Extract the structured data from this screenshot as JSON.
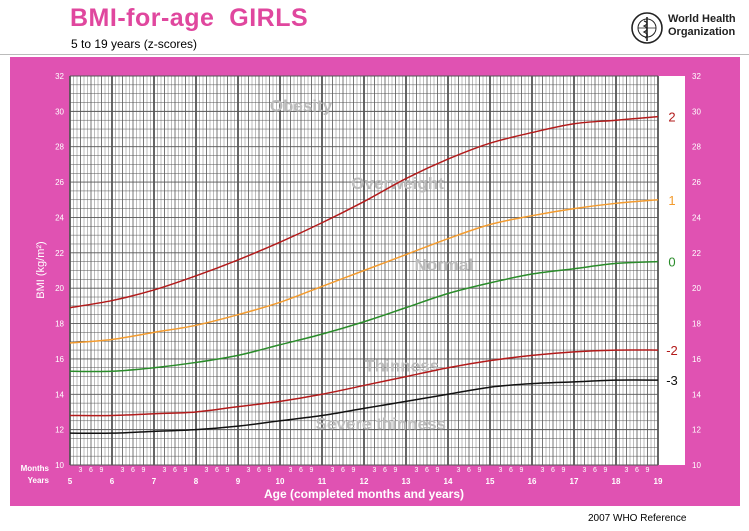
{
  "title": "BMI-for-age  GIRLS",
  "subtitle": "5 to 19 years (z-scores)",
  "logo": {
    "line1": "World Health",
    "line2": "Organization",
    "emblem": "who-emblem-icon"
  },
  "footer": "2007 WHO Reference",
  "colors": {
    "frame": "#e052b2",
    "title": "#e0479e",
    "grid": "#555555",
    "z2": "#b31b1b",
    "z1": "#f39b2e",
    "z0": "#2a8c2a",
    "zm2": "#b31b1b",
    "zm3": "#111111",
    "zone_label": "#bbbbbb"
  },
  "chart_data": {
    "type": "line",
    "xlabel": "Age (completed months and years)",
    "ylabel": "BMI (kg/m²)",
    "xlim": [
      5,
      19
    ],
    "ylim": [
      10,
      32
    ],
    "x_ticks": [
      5,
      6,
      7,
      8,
      9,
      10,
      11,
      12,
      13,
      14,
      15,
      16,
      17,
      18,
      19
    ],
    "x_tick_labels": [
      "5",
      "6",
      "7",
      "8",
      "9",
      "10",
      "11",
      "12",
      "13",
      "14",
      "15",
      "16",
      "17",
      "18",
      "19"
    ],
    "y_ticks": [
      10,
      12,
      14,
      16,
      18,
      20,
      22,
      24,
      26,
      28,
      30,
      32
    ],
    "y_tick_labels": [
      "10",
      "12",
      "14",
      "16",
      "18",
      "20",
      "22",
      "24",
      "26",
      "28",
      "30",
      "32"
    ],
    "month_ticks": [
      "3",
      "6",
      "9"
    ],
    "row_label_months": "Months",
    "row_label_years": "Years",
    "grid": true,
    "zone_labels": [
      {
        "text": "Obesity",
        "x": 10.5,
        "y": 30.0
      },
      {
        "text": "Overweight",
        "x": 12.8,
        "y": 25.6
      },
      {
        "text": "Normal",
        "x": 13.9,
        "y": 21.0
      },
      {
        "text": "Thinness",
        "x": 12.9,
        "y": 15.3
      },
      {
        "text": "Severe thinness",
        "x": 12.4,
        "y": 12.0
      }
    ],
    "x": [
      5,
      6,
      7,
      8,
      9,
      10,
      11,
      12,
      13,
      14,
      15,
      16,
      17,
      18,
      19
    ],
    "series": [
      {
        "name": "2",
        "color": "#b31b1b",
        "values": [
          18.9,
          19.3,
          19.9,
          20.7,
          21.6,
          22.6,
          23.7,
          24.9,
          26.2,
          27.3,
          28.2,
          28.8,
          29.3,
          29.5,
          29.7
        ]
      },
      {
        "name": "1",
        "color": "#f39b2e",
        "values": [
          16.9,
          17.1,
          17.5,
          17.9,
          18.5,
          19.2,
          20.1,
          21.0,
          21.9,
          22.8,
          23.6,
          24.1,
          24.5,
          24.8,
          25.0
        ]
      },
      {
        "name": "0",
        "color": "#2a8c2a",
        "values": [
          15.3,
          15.3,
          15.5,
          15.8,
          16.2,
          16.8,
          17.4,
          18.1,
          18.9,
          19.7,
          20.3,
          20.8,
          21.1,
          21.4,
          21.5
        ]
      },
      {
        "name": "-2",
        "color": "#b31b1b",
        "values": [
          12.8,
          12.8,
          12.9,
          13.0,
          13.3,
          13.6,
          14.0,
          14.5,
          15.0,
          15.5,
          15.9,
          16.2,
          16.4,
          16.5,
          16.5
        ]
      },
      {
        "name": "-3",
        "color": "#111111",
        "values": [
          11.8,
          11.8,
          11.9,
          12.0,
          12.2,
          12.5,
          12.8,
          13.2,
          13.6,
          14.0,
          14.4,
          14.6,
          14.7,
          14.8,
          14.8
        ]
      }
    ]
  }
}
